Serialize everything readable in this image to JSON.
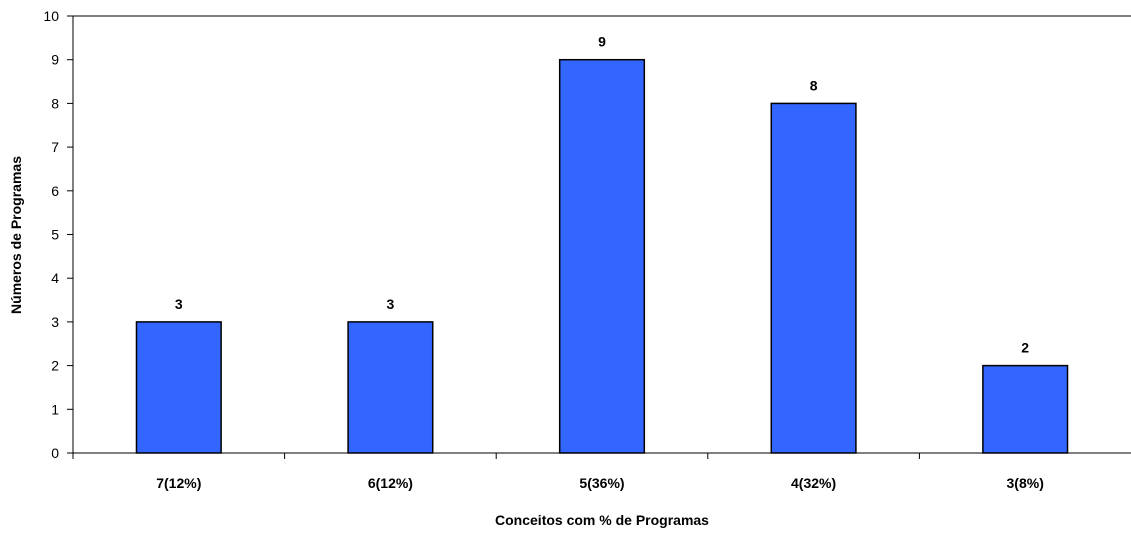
{
  "chart_data": {
    "type": "bar",
    "title": "",
    "xlabel": "Conceitos com % de Programas",
    "ylabel": "Números de Programas",
    "categories": [
      "7(12%)",
      "6(12%)",
      "5(36%)",
      "4(32%)",
      "3(8%)"
    ],
    "values": [
      3,
      3,
      9,
      8,
      2
    ],
    "data_labels": [
      "3",
      "3",
      "9",
      "8",
      "2"
    ],
    "ylim": [
      0,
      10
    ],
    "yticks": [
      0,
      1,
      2,
      3,
      4,
      5,
      6,
      7,
      8,
      9,
      10
    ],
    "bar_color": "#3366FF",
    "bar_outline": "#000000",
    "grid": false,
    "legend": "none"
  }
}
